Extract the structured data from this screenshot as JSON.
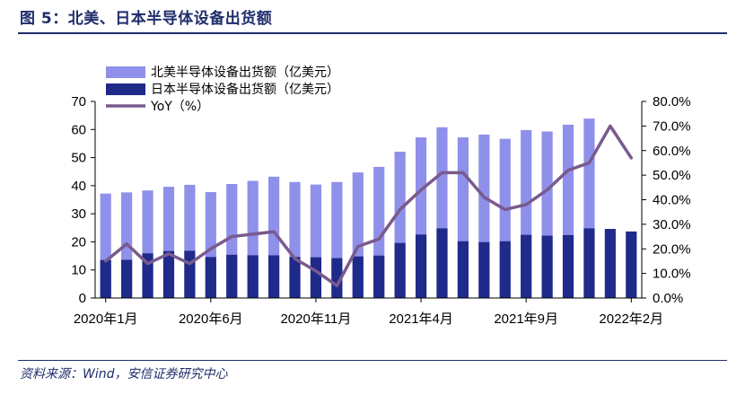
{
  "figure": {
    "title": "图 5：北美、日本半导体设备出货额",
    "source": "资料来源：Wind，安信证券研究中心"
  },
  "colors": {
    "north_america": "#8e90ea",
    "japan": "#1f2a8a",
    "yoy": "#7a5a8e",
    "title": "#1f2d6b"
  },
  "chart_data": {
    "type": "bar",
    "x": [
      "2020年1月",
      "2020年2月",
      "2020年3月",
      "2020年4月",
      "2020年5月",
      "2020年6月",
      "2020年7月",
      "2020年8月",
      "2020年9月",
      "2020年10月",
      "2020年11月",
      "2020年12月",
      "2021年1月",
      "2021年2月",
      "2021年3月",
      "2021年4月",
      "2021年5月",
      "2021年6月",
      "2021年7月",
      "2021年8月",
      "2021年9月",
      "2021年10月",
      "2021年11月",
      "2021年12月",
      "2022年1月",
      "2022年2月"
    ],
    "x_tick_labels": [
      "2020年1月",
      "2020年6月",
      "2020年11月",
      "2021年4月",
      "2021年9月",
      "2022年2月"
    ],
    "series": [
      {
        "name": "北美半导体设备出货额（亿美元）",
        "kind": "bar",
        "axis": "left",
        "values": [
          37.2,
          37.6,
          38.3,
          39.6,
          40.3,
          37.7,
          40.6,
          41.7,
          43.2,
          41.3,
          40.4,
          41.3,
          44.7,
          46.7,
          52.1,
          57.2,
          60.8,
          57.2,
          58.2,
          56.7,
          59.8,
          59.3,
          61.7,
          63.9,
          null,
          null
        ]
      },
      {
        "name": "日本半导体设备出货额（亿美元）",
        "kind": "bar",
        "axis": "left",
        "values": [
          13.5,
          13.6,
          15.9,
          16.7,
          16.8,
          14.6,
          15.4,
          15.2,
          15.2,
          14.6,
          14.5,
          14.2,
          14.8,
          15.1,
          19.6,
          22.6,
          24.8,
          20.2,
          19.9,
          20.2,
          22.5,
          22.2,
          22.4,
          24.8,
          24.6,
          23.7
        ]
      },
      {
        "name": "YoY（%）",
        "kind": "line",
        "axis": "right",
        "values": [
          15,
          22,
          14,
          18,
          14,
          20,
          25,
          26,
          27,
          16,
          11,
          5,
          21,
          24,
          36,
          44,
          51,
          51,
          41,
          36,
          38,
          44,
          52,
          55,
          70,
          57
        ]
      }
    ],
    "y_left": {
      "min": 0,
      "max": 70,
      "ticks": [
        "0",
        "10",
        "20",
        "30",
        "40",
        "50",
        "60",
        "70"
      ]
    },
    "y_right": {
      "min": 0,
      "max": 80,
      "unit": "%",
      "ticks": [
        "0.0%",
        "10.0%",
        "20.0%",
        "30.0%",
        "40.0%",
        "50.0%",
        "60.0%",
        "70.0%",
        "80.0%"
      ]
    },
    "grid": false,
    "legend_position": "top-left"
  }
}
